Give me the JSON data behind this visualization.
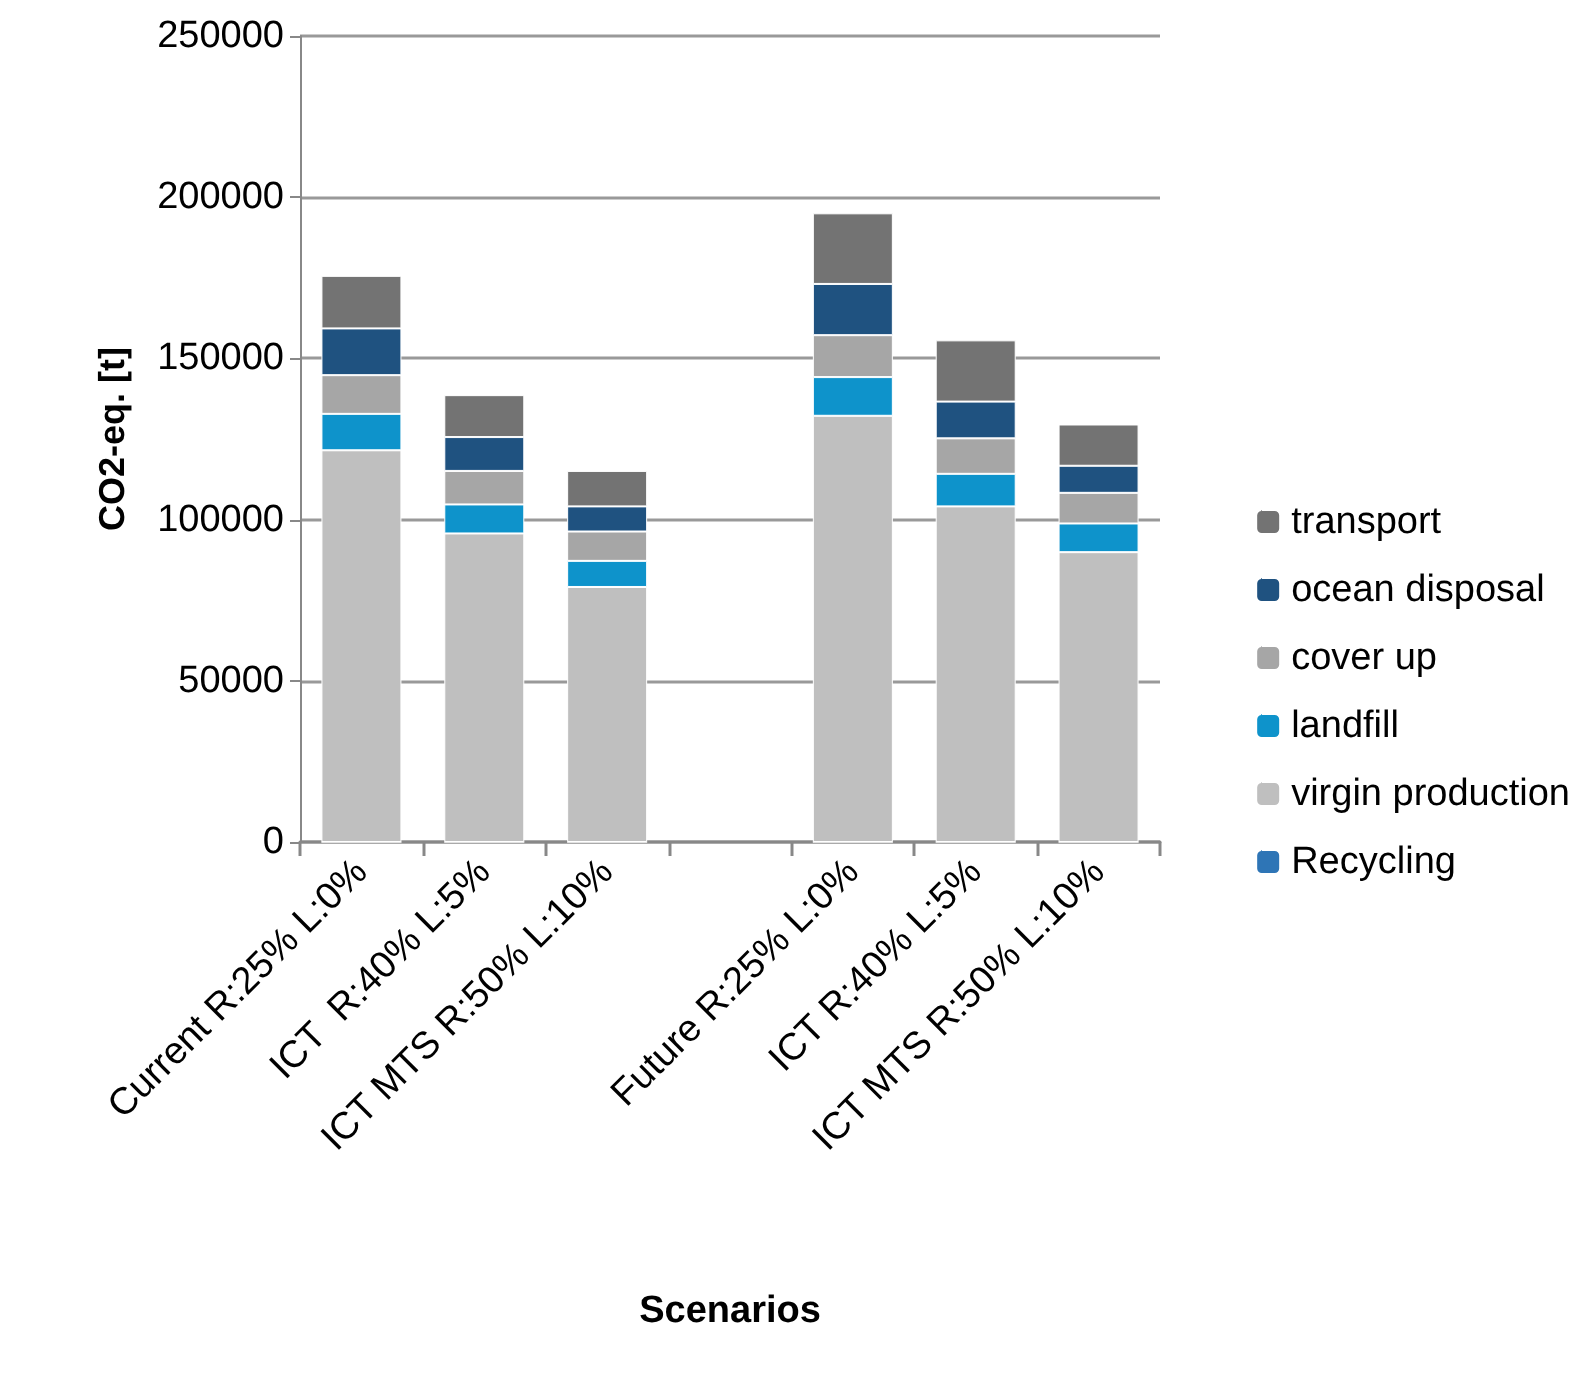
{
  "chart_data": {
    "type": "bar",
    "stacked": true,
    "xlabel": "Scenarios",
    "ylabel": "CO2-eq. [t]",
    "categories": [
      "Current R:25% L:0%",
      "ICT  R:40% L:5%",
      "ICT MTS R:50% L:10%",
      null,
      "Future R:25% L:0%",
      "ICT R:40% L:5%",
      "ICT MTS R:50% L:10%"
    ],
    "series": [
      {
        "name": "Recycling",
        "color": "#2e75b6",
        "values": [
          0,
          0,
          0,
          null,
          0,
          0,
          0
        ]
      },
      {
        "name": "virgin production",
        "color": "#bfbfbf",
        "values": [
          121500,
          95700,
          79100,
          null,
          132200,
          104100,
          89900
        ]
      },
      {
        "name": "landfill",
        "color": "#0e93cb",
        "values": [
          11300,
          9000,
          8100,
          null,
          12000,
          10100,
          8900
        ]
      },
      {
        "name": "cover up",
        "color": "#a6a6a6",
        "values": [
          12000,
          10400,
          9100,
          null,
          13000,
          11000,
          9500
        ]
      },
      {
        "name": "ocean disposal",
        "color": "#1f5280",
        "values": [
          14500,
          10500,
          7800,
          null,
          15900,
          11400,
          8400
        ]
      },
      {
        "name": "transport",
        "color": "#737373",
        "values": [
          16300,
          13000,
          11000,
          null,
          21900,
          19000,
          12800
        ]
      }
    ],
    "ylim": [
      0,
      250000
    ],
    "yticks": [
      0,
      50000,
      100000,
      150000,
      200000,
      250000
    ],
    "grid": "y",
    "legend": "right"
  }
}
